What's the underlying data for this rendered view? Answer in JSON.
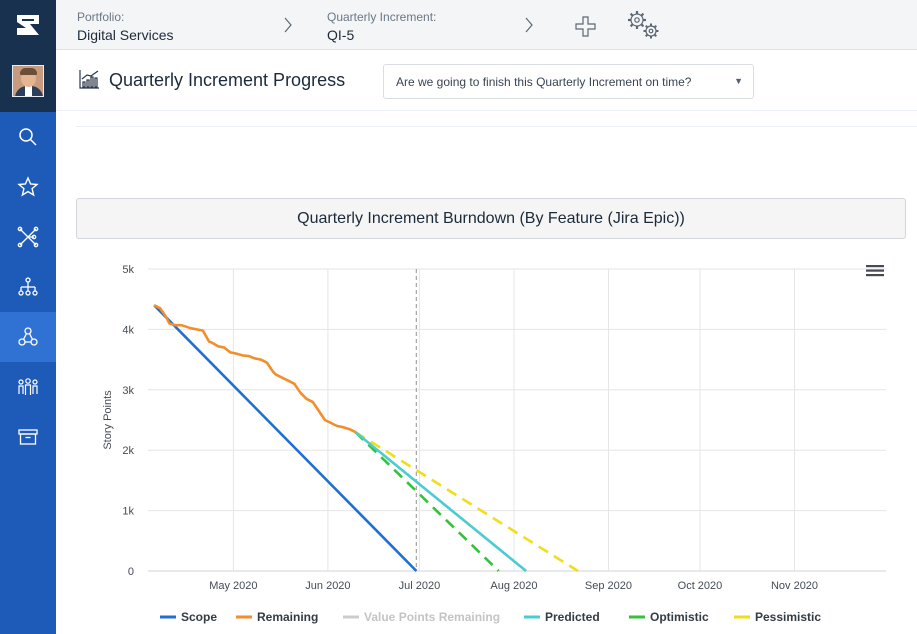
{
  "topbar": {
    "portfolio_label": "Portfolio:",
    "portfolio_value": "Digital Services",
    "increment_label": "Quarterly Increment:",
    "increment_value": "QI-5",
    "icons": [
      "chevron-right-icon",
      "add-icon",
      "settings-icon"
    ]
  },
  "sidebar": {
    "items": [
      {
        "icon": "search-icon"
      },
      {
        "icon": "star-icon"
      },
      {
        "icon": "network-icon"
      },
      {
        "icon": "hierarchy-icon"
      },
      {
        "icon": "connected-nodes-icon",
        "active": true
      },
      {
        "icon": "people-icon"
      },
      {
        "icon": "archive-icon"
      }
    ]
  },
  "page": {
    "title": "Quarterly Increment Progress",
    "question": "Are we going to finish this Quarterly Increment on time?"
  },
  "colors": {
    "scope": "#1f6fd1",
    "remaining": "#f28e2b",
    "value_points": "#cccccc",
    "predicted": "#4ccbd0",
    "optimistic": "#35c23a",
    "pessimistic": "#f2dc1b",
    "sidebar": "#1e5bb8"
  },
  "chart_data": {
    "type": "line",
    "title": "Quarterly Increment Burndown (By Feature (Jira Epic))",
    "ylabel": "Story Points",
    "xlabel": "",
    "ylim": [
      0,
      5000
    ],
    "yticks": [
      0,
      1000,
      2000,
      3000,
      4000,
      5000
    ],
    "ytick_labels": [
      "0",
      "1k",
      "2k",
      "3k",
      "4k",
      "5k"
    ],
    "xlim": [
      "2020-04-03",
      "2020-12-01"
    ],
    "xtick_labels": [
      {
        "date": "2020-05-01",
        "label": "May 2020"
      },
      {
        "date": "2020-06-01",
        "label": "Jun 2020"
      },
      {
        "date": "2020-07-01",
        "label": "Jul 2020"
      },
      {
        "date": "2020-08-01",
        "label": "Aug 2020"
      },
      {
        "date": "2020-09-01",
        "label": "Sep 2020"
      },
      {
        "date": "2020-10-01",
        "label": "Oct 2020"
      },
      {
        "date": "2020-11-01",
        "label": "Nov 2020"
      }
    ],
    "today_marker": "2020-06-30",
    "grid": true,
    "legend_position": "bottom",
    "series": [
      {
        "name": "Scope",
        "style": "solid",
        "x": [
          "2020-04-05",
          "2020-06-30"
        ],
        "y": [
          4400,
          0
        ]
      },
      {
        "name": "Remaining",
        "style": "solid",
        "x": [
          "2020-04-05",
          "2020-04-07",
          "2020-04-09",
          "2020-04-10",
          "2020-04-12",
          "2020-04-14",
          "2020-04-17",
          "2020-04-19",
          "2020-04-21",
          "2020-04-23",
          "2020-04-24",
          "2020-04-26",
          "2020-04-28",
          "2020-04-30",
          "2020-05-02",
          "2020-05-04",
          "2020-05-06",
          "2020-05-08",
          "2020-05-10",
          "2020-05-12",
          "2020-05-14",
          "2020-05-15",
          "2020-05-17",
          "2020-05-19",
          "2020-05-21",
          "2020-05-23",
          "2020-05-25",
          "2020-05-27",
          "2020-05-29",
          "2020-05-31",
          "2020-06-02",
          "2020-06-04",
          "2020-06-06",
          "2020-06-08",
          "2020-06-10"
        ],
        "y": [
          4400,
          4350,
          4200,
          4100,
          4070,
          4070,
          4020,
          4000,
          3980,
          3800,
          3780,
          3720,
          3700,
          3620,
          3600,
          3570,
          3560,
          3520,
          3500,
          3450,
          3300,
          3250,
          3200,
          3150,
          3100,
          2950,
          2850,
          2800,
          2650,
          2500,
          2450,
          2400,
          2380,
          2350,
          2300
        ]
      },
      {
        "name": "Value Points Remaining",
        "style": "solid",
        "disabled": true,
        "x": [],
        "y": []
      },
      {
        "name": "Predicted",
        "style": "solid",
        "x": [
          "2020-06-10",
          "2020-08-05"
        ],
        "y": [
          2300,
          0
        ]
      },
      {
        "name": "Optimistic",
        "style": "dashed",
        "x": [
          "2020-06-10",
          "2020-07-27"
        ],
        "y": [
          2300,
          0
        ]
      },
      {
        "name": "Pessimistic",
        "style": "dashed",
        "x": [
          "2020-06-10",
          "2020-08-22"
        ],
        "y": [
          2300,
          0
        ]
      }
    ]
  }
}
